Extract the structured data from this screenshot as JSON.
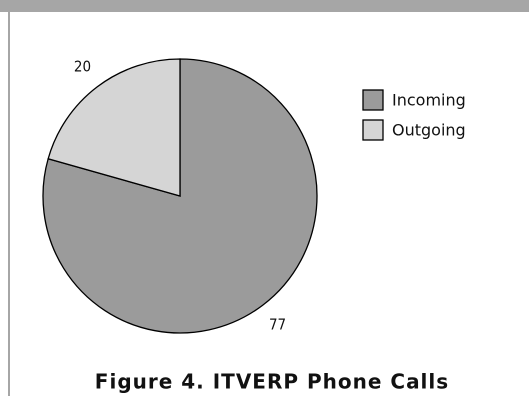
{
  "chart_data": {
    "type": "pie",
    "title": "Figure 4. ITVERP Phone Calls",
    "categories": [
      "Incoming",
      "Outgoing"
    ],
    "values": [
      77,
      20
    ],
    "colors": [
      "#9b9b9b",
      "#d5d5d5"
    ]
  }
}
